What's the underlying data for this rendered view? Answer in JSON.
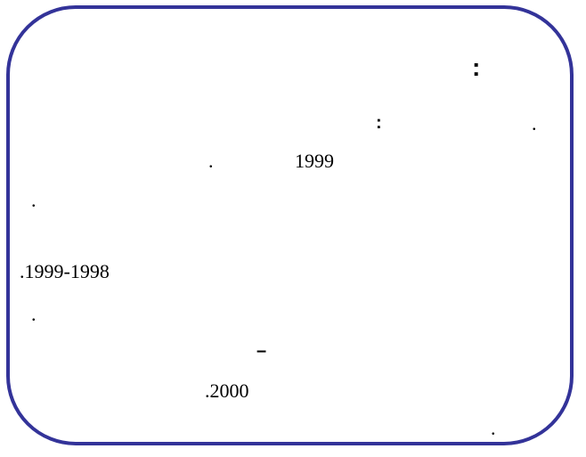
{
  "slide": {
    "frame_color": "#333399",
    "heading_colon": ":",
    "line1": {
      "colon": ":",
      "dot": "."
    },
    "line2": {
      "year": "1999",
      "dot": "."
    },
    "line3": {
      "dot": "."
    },
    "line4": {
      "years": ".1999-1998"
    },
    "line5": {
      "dot": "."
    },
    "line6": {
      "dash": "–"
    },
    "line7": {
      "year": ".2000"
    },
    "line8": {
      "dot": "."
    }
  }
}
